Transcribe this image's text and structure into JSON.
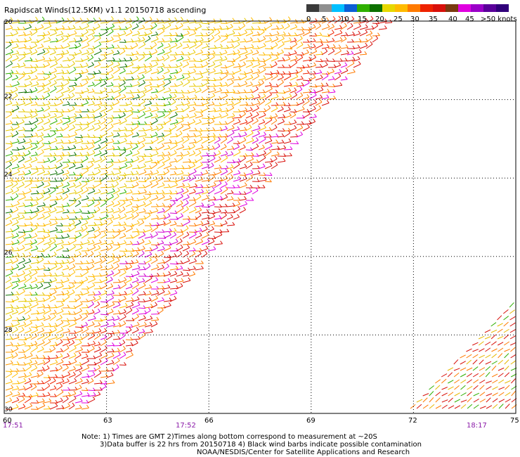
{
  "title": "Rapidscat Winds(12.5KM) v1.1 20150718 ascending",
  "legend": {
    "colors": [
      "#3a3a3a",
      "#8f8f8f",
      "#00bfff",
      "#0c5fd6",
      "#2fb000",
      "#0c7000",
      "#e6d800",
      "#ffbb00",
      "#ff7a00",
      "#ee2200",
      "#d8100a",
      "#7a3a10",
      "#e000e0",
      "#9a00c8",
      "#5a009a",
      "#30007a"
    ],
    "ticks": [
      "0",
      "5",
      "10",
      "15",
      "20",
      "25",
      "30",
      "35",
      "40",
      "45",
      ">50 knots"
    ]
  },
  "lat_labels": [
    "20",
    "22",
    "24",
    "26",
    "28",
    "30"
  ],
  "lon_labels": [
    "60",
    "63",
    "66",
    "69",
    "72",
    "75"
  ],
  "time_labels": [
    "17:51",
    "17:52",
    "18:17"
  ],
  "notes": [
    "Note: 1) Times are GMT 2)Times along bottom correspond to measurement at ~20S",
    "3)Data buffer is 22 hrs from 20150718 4) Black wind barbs indicate possible contamination",
    "NOAA/NESDIS/Center for Satellite Applications and Research"
  ],
  "map": {
    "lat_range": [
      20,
      30
    ],
    "lon_range": [
      60,
      75
    ]
  }
}
